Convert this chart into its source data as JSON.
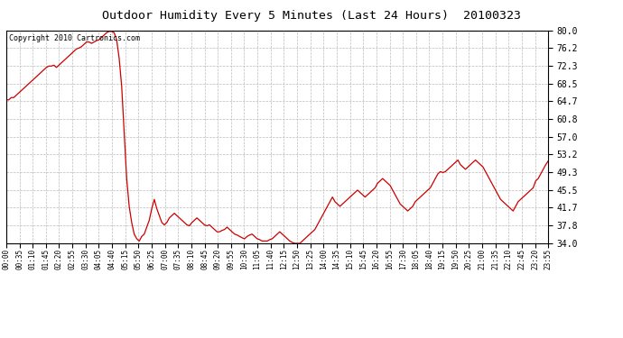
{
  "title": "Outdoor Humidity Every 5 Minutes (Last 24 Hours)  20100323",
  "copyright_text": "Copyright 2010 Cartronics.com",
  "line_color": "#cc0000",
  "bg_color": "#ffffff",
  "plot_bg_color": "#ffffff",
  "grid_color": "#bbbbbb",
  "grid_linestyle": "--",
  "ylim": [
    34.0,
    80.0
  ],
  "yticks": [
    34.0,
    37.8,
    41.7,
    45.5,
    49.3,
    53.2,
    57.0,
    60.8,
    64.7,
    68.5,
    72.3,
    76.2,
    80.0
  ],
  "xtick_labels": [
    "00:00",
    "00:35",
    "01:10",
    "01:45",
    "02:20",
    "02:55",
    "03:30",
    "04:05",
    "04:40",
    "05:15",
    "05:50",
    "06:25",
    "07:00",
    "07:35",
    "08:10",
    "08:45",
    "09:20",
    "09:55",
    "10:30",
    "11:05",
    "11:40",
    "12:15",
    "12:50",
    "13:25",
    "14:00",
    "14:35",
    "15:10",
    "15:45",
    "16:20",
    "16:55",
    "17:30",
    "18:05",
    "18:40",
    "19:15",
    "19:50",
    "20:25",
    "21:00",
    "21:35",
    "22:10",
    "22:45",
    "23:20",
    "23:55"
  ],
  "humidity_values": [
    65.0,
    65.0,
    65.5,
    65.5,
    66.0,
    66.5,
    67.0,
    67.5,
    68.0,
    68.5,
    69.0,
    69.5,
    70.0,
    70.5,
    71.0,
    71.5,
    72.0,
    72.3,
    72.3,
    72.5,
    72.0,
    72.5,
    73.0,
    73.5,
    74.0,
    74.5,
    75.0,
    75.5,
    76.0,
    76.2,
    76.5,
    77.0,
    77.5,
    77.5,
    77.2,
    77.5,
    77.8,
    78.0,
    78.5,
    79.0,
    79.5,
    79.8,
    79.8,
    79.5,
    78.0,
    74.0,
    68.0,
    58.0,
    48.0,
    42.0,
    38.5,
    36.0,
    35.0,
    34.5,
    35.5,
    36.0,
    37.5,
    39.0,
    41.5,
    43.5,
    41.5,
    40.0,
    38.5,
    38.0,
    38.5,
    39.5,
    40.0,
    40.5,
    40.0,
    39.5,
    39.0,
    38.5,
    38.0,
    37.8,
    38.5,
    39.0,
    39.5,
    39.0,
    38.5,
    38.0,
    37.8,
    38.0,
    37.5,
    37.0,
    36.5,
    36.5,
    36.8,
    37.0,
    37.5,
    37.0,
    36.5,
    36.0,
    35.8,
    35.5,
    35.2,
    35.0,
    35.5,
    35.8,
    36.0,
    35.5,
    35.0,
    34.8,
    34.5,
    34.5,
    34.5,
    34.8,
    35.0,
    35.5,
    36.0,
    36.5,
    36.0,
    35.5,
    35.0,
    34.5,
    34.2,
    34.0,
    34.0,
    34.0,
    34.5,
    35.0,
    35.5,
    36.0,
    36.5,
    37.0,
    38.0,
    39.0,
    40.0,
    41.0,
    42.0,
    43.0,
    44.0,
    43.0,
    42.5,
    42.0,
    42.5,
    43.0,
    43.5,
    44.0,
    44.5,
    45.0,
    45.5,
    45.0,
    44.5,
    44.0,
    44.5,
    45.0,
    45.5,
    46.0,
    47.0,
    47.5,
    48.0,
    47.5,
    47.0,
    46.5,
    45.5,
    44.5,
    43.5,
    42.5,
    42.0,
    41.5,
    41.0,
    41.5,
    42.0,
    43.0,
    43.5,
    44.0,
    44.5,
    45.0,
    45.5,
    46.0,
    47.0,
    48.0,
    49.0,
    49.5,
    49.3,
    49.5,
    50.0,
    50.5,
    51.0,
    51.5,
    52.0,
    51.0,
    50.5,
    50.0,
    50.5,
    51.0,
    51.5,
    52.0,
    51.5,
    51.0,
    50.5,
    49.5,
    48.5,
    47.5,
    46.5,
    45.5,
    44.5,
    43.5,
    43.0,
    42.5,
    42.0,
    41.5,
    41.0,
    42.0,
    43.0,
    43.5,
    44.0,
    44.5,
    45.0,
    45.5,
    46.0,
    47.5,
    48.0,
    49.0,
    50.0,
    51.0,
    51.8
  ]
}
